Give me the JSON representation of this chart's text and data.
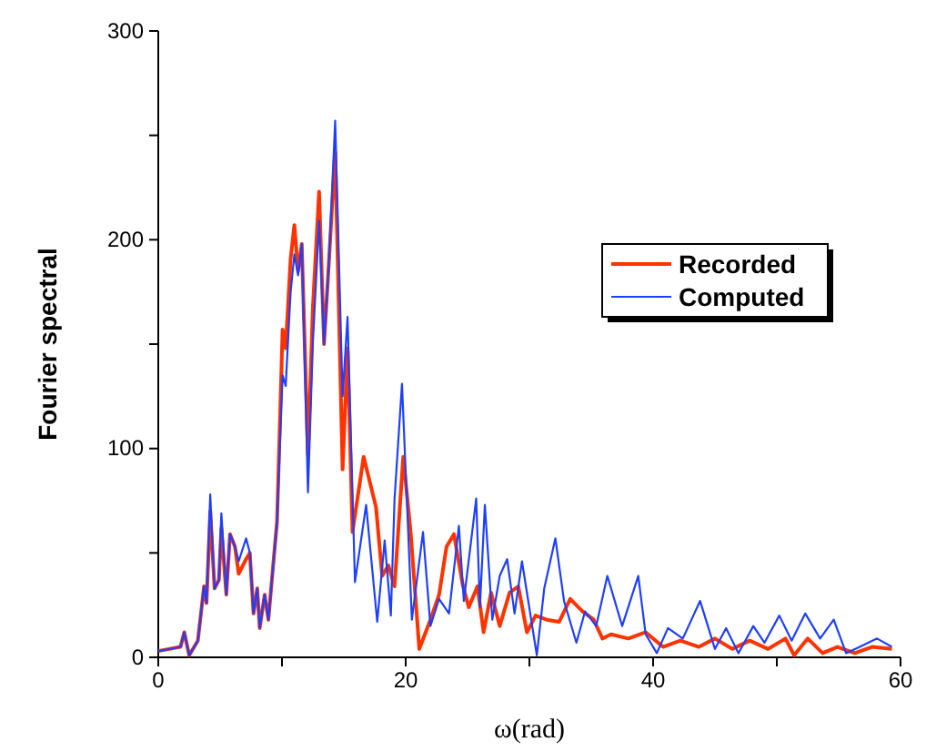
{
  "chart_data": {
    "type": "line",
    "xlabel": "ω(rad)",
    "ylabel": "Fourier spectral",
    "xlim": [
      0,
      60
    ],
    "ylim": [
      0,
      300
    ],
    "xticks": [
      0,
      {
        "value": 10,
        "label": null
      },
      20,
      {
        "value": 30,
        "label": null
      },
      40,
      {
        "value": 50,
        "label": null
      },
      60
    ],
    "yticks": [
      0,
      {
        "value": 50,
        "label": null
      },
      100,
      {
        "value": 150,
        "label": null
      },
      200,
      {
        "value": 250,
        "label": null
      },
      300
    ],
    "grid": false,
    "legend": "top right",
    "line_style": "solid",
    "marker": "none",
    "series": [
      {
        "name": "Recorded",
        "color": "#ff3300",
        "x": [
          0,
          1.8,
          2.1,
          2.5,
          3.2,
          3.7,
          3.9,
          4.2,
          4.55,
          4.9,
          5.1,
          5.5,
          5.8,
          6.2,
          6.5,
          7.1,
          7.4,
          7.7,
          8.0,
          8.2,
          8.6,
          8.9,
          9.6,
          10.05,
          10.3,
          10.7,
          11.0,
          11.3,
          11.6,
          12.1,
          12.5,
          13.0,
          13.4,
          13.8,
          14.3,
          14.9,
          15.3,
          15.7,
          16.6,
          17.6,
          18.1,
          18.6,
          19.1,
          19.8,
          20.4,
          21.1,
          22.0,
          22.7,
          23.3,
          23.9,
          24.6,
          25.1,
          25.8,
          26.3,
          26.9,
          27.6,
          28.4,
          29.1,
          29.8,
          30.5,
          31.4,
          32.4,
          33.3,
          34.3,
          35.2,
          35.9,
          36.6,
          38.0,
          39.4,
          40.8,
          42.2,
          43.7,
          45.0,
          46.4,
          47.8,
          49.3,
          50.7,
          51.4,
          52.5,
          53.7,
          54.9,
          56.3,
          57.7,
          59.3
        ],
        "values": [
          3,
          5,
          12,
          1,
          8,
          34,
          26,
          70,
          33,
          37,
          62,
          30,
          59,
          53,
          40,
          47,
          50,
          21,
          33,
          14,
          30,
          18,
          65,
          157,
          148,
          191,
          207,
          185,
          198,
          97,
          168,
          223,
          150,
          190,
          242,
          90,
          148,
          60,
          96,
          72,
          39,
          44,
          34,
          96,
          60,
          4,
          18,
          30,
          53,
          59,
          35,
          24,
          34,
          12,
          31,
          15,
          31,
          34,
          12,
          20,
          18,
          17,
          28,
          22,
          18,
          9,
          11,
          9,
          12,
          5,
          8,
          5,
          9,
          4,
          8,
          4,
          9,
          1,
          9,
          2,
          5,
          2,
          5,
          4
        ]
      },
      {
        "name": "Computed",
        "color": "#1f3fff",
        "x": [
          0,
          1.8,
          2.1,
          2.5,
          3.2,
          3.7,
          3.9,
          4.2,
          4.55,
          4.9,
          5.1,
          5.5,
          5.8,
          6.2,
          6.5,
          7.1,
          7.4,
          7.7,
          8.0,
          8.2,
          8.6,
          8.9,
          9.6,
          10.05,
          10.3,
          10.7,
          11.0,
          11.3,
          11.6,
          12.1,
          12.5,
          13.0,
          13.4,
          13.8,
          14.3,
          14.9,
          15.3,
          15.9,
          16.8,
          17.7,
          18.3,
          18.8,
          19.1,
          19.7,
          20.5,
          21.4,
          22.0,
          22.7,
          23.5,
          24.3,
          24.7,
          25.7,
          26.0,
          26.4,
          27.0,
          27.6,
          28.2,
          28.8,
          29.4,
          30.6,
          31.2,
          32.1,
          32.8,
          33.8,
          34.5,
          35.4,
          36.3,
          37.5,
          38.8,
          39.4,
          40.3,
          41.2,
          42.4,
          43.8,
          45.0,
          45.9,
          46.9,
          48.1,
          49.0,
          50.2,
          51.2,
          52.3,
          53.5,
          54.6,
          55.6,
          56.7,
          58.1,
          59.3
        ],
        "values": [
          3,
          5,
          12,
          1,
          8,
          34,
          26,
          78,
          33,
          37,
          69,
          30,
          59,
          53,
          46,
          57,
          50,
          21,
          33,
          14,
          30,
          18,
          65,
          135,
          130,
          175,
          193,
          183,
          198,
          79,
          151,
          209,
          150,
          190,
          257,
          125,
          163,
          36,
          73,
          17,
          56,
          20,
          76,
          131,
          18,
          60,
          15,
          28,
          21,
          63,
          27,
          76,
          24,
          73,
          18,
          39,
          47,
          21,
          46,
          1,
          33,
          57,
          27,
          7,
          22,
          15,
          39,
          15,
          39,
          11,
          2,
          14,
          9,
          27,
          4,
          14,
          2,
          15,
          7,
          20,
          8,
          21,
          9,
          18,
          2,
          5,
          9,
          5
        ]
      }
    ]
  }
}
